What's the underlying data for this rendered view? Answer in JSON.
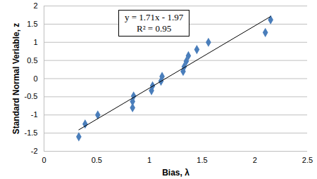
{
  "chart_data": {
    "type": "scatter",
    "xlabel": "Bias, λ",
    "ylabel": "Standard Normal Veriable, z",
    "annotations": [
      "y = 1.71x - 1.97",
      "R² = 0.95"
    ],
    "series": [
      {
        "type": "scatter",
        "color": "#4a7ebb",
        "marker": "diamond",
        "x": [
          0.33,
          0.39,
          0.51,
          0.84,
          0.84,
          0.85,
          1.02,
          1.03,
          1.11,
          1.12,
          1.32,
          1.33,
          1.35,
          1.37,
          1.45,
          1.56,
          2.1,
          2.15
        ],
        "values": [
          -1.6,
          -1.25,
          -1.0,
          -0.8,
          -0.63,
          -0.48,
          -0.33,
          -0.2,
          -0.07,
          0.06,
          0.2,
          0.33,
          0.48,
          0.63,
          0.8,
          1.0,
          1.27,
          1.62
        ]
      },
      {
        "type": "line",
        "color": "#000000",
        "line_style": "solid",
        "x": [
          0.33,
          2.15
        ],
        "values": [
          -1.41,
          1.71
        ]
      }
    ],
    "xlim": [
      0,
      2.5
    ],
    "xticks": [
      0,
      0.5,
      1,
      1.5,
      2,
      2.5
    ],
    "ylim": [
      -2,
      2
    ],
    "yticks": [
      -2,
      -1.5,
      -1,
      -0.5,
      0,
      0.5,
      1,
      1.5,
      2
    ],
    "grid": true
  }
}
